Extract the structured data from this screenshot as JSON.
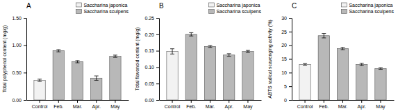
{
  "chart_data": [
    {
      "type": "bar",
      "title": "A",
      "ylabel": "Total polyphenol content  (mg/g)",
      "categories": [
        "Control",
        "Feb.",
        "Mar.",
        "Apr.",
        "May"
      ],
      "series": [
        {
          "name": "Saccharina japonica",
          "color": "#f2f2f2",
          "values": [
            0.36,
            null,
            null,
            null,
            null
          ],
          "errors": [
            0.02,
            null,
            null,
            null,
            null
          ]
        },
        {
          "name": "Saccharina sculpens",
          "color": "#b8b8b8",
          "values": [
            null,
            0.9,
            0.7,
            0.4,
            0.8
          ],
          "errors": [
            null,
            0.02,
            0.02,
            0.04,
            0.02
          ]
        }
      ],
      "ylim": [
        0,
        1.5
      ],
      "yticks": [
        {
          "value": 0,
          "label": "0.00"
        },
        {
          "value": 0.5,
          "label": "0.50"
        },
        {
          "value": 1.0,
          "label": "1.00"
        },
        {
          "value": 1.5,
          "label": "1.50"
        }
      ],
      "grid": false,
      "legend": "upper right"
    },
    {
      "type": "bar",
      "title": "B",
      "ylabel": "Total flavonoid content (mg/g)",
      "categories": [
        "Control",
        "Feb.",
        "Mar.",
        "Apr.",
        "May"
      ],
      "series": [
        {
          "name": "Saccharina japonica",
          "color": "#f2f2f2",
          "values": [
            0.148,
            null,
            null,
            null,
            null
          ],
          "errors": [
            0.008,
            null,
            null,
            null,
            null
          ]
        },
        {
          "name": "Saccharina sculpens",
          "color": "#b8b8b8",
          "values": [
            null,
            0.2,
            0.163,
            0.137,
            0.148
          ],
          "errors": [
            null,
            0.005,
            0.003,
            0.004,
            0.003
          ]
        }
      ],
      "ylim": [
        0,
        0.25
      ],
      "yticks": [
        {
          "value": 0,
          "label": "0.00"
        },
        0.05,
        {
          "value": 0.1,
          "label": "0.10"
        },
        0.15,
        {
          "value": 0.2,
          "label": "0.20"
        },
        0.25
      ],
      "grid": false,
      "legend": "upper right"
    },
    {
      "type": "bar",
      "title": "C",
      "ylabel": "ABTS radical scavenging activity (%)",
      "categories": [
        "Control",
        "Feb.",
        "Mar.",
        "Apr.",
        "May"
      ],
      "series": [
        {
          "name": "Saccharina japonica",
          "color": "#f2f2f2",
          "values": [
            13.0,
            null,
            null,
            null,
            null
          ],
          "errors": [
            0.3,
            null,
            null,
            null,
            null
          ]
        },
        {
          "name": "Saccharina sculpens",
          "color": "#b8b8b8",
          "values": [
            null,
            23.5,
            18.8,
            13.0,
            11.5
          ],
          "errors": [
            null,
            0.8,
            0.4,
            0.4,
            0.3
          ]
        }
      ],
      "ylim": [
        0,
        30
      ],
      "yticks": [
        0,
        5,
        10,
        15,
        20,
        25,
        30
      ],
      "grid": false,
      "legend": "upper right"
    }
  ]
}
